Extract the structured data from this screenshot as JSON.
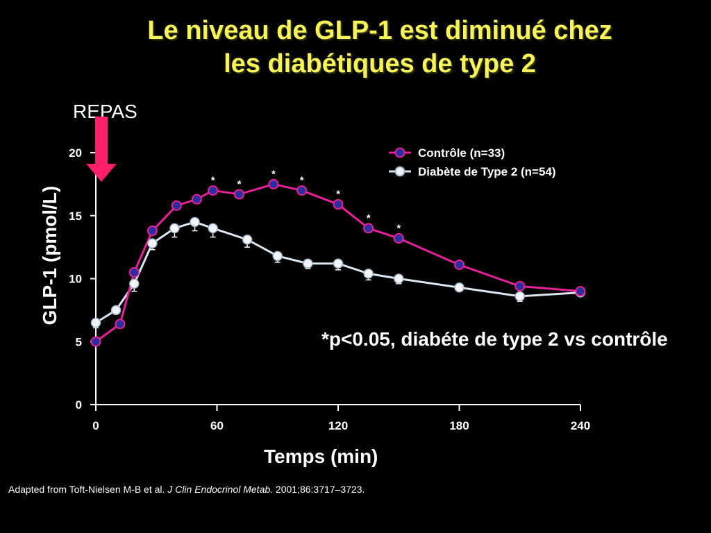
{
  "slide": {
    "title_line1": "Le niveau de GLP-1 est diminué chez",
    "title_line2": "les diabétiques de type 2",
    "meal_label": "REPAS",
    "significance_note": "*p<0.05, diabéte de type 2  vs contrôle",
    "citation_prefix": "Adapted from Toft-Nielsen M-B et al. ",
    "citation_journal": "J Clin Endocrinol Metab.",
    "citation_suffix": " 2001;86:3717–3723.",
    "colors": {
      "title": "#f6f25a",
      "control_line": "#e8209a",
      "control_marker": "#2b2f9e",
      "diabetes_line": "#dbe7f2",
      "meal_arrow": "#ff1f6b"
    }
  },
  "chart_data": {
    "type": "line",
    "xlabel": "Temps (min)",
    "ylabel": "GLP-1 (pmol/L)",
    "xlim": [
      0,
      240
    ],
    "ylim": [
      0,
      20
    ],
    "xticks": [
      0,
      60,
      120,
      180,
      240
    ],
    "yticks": [
      0,
      5,
      10,
      15,
      20
    ],
    "grid": false,
    "legend_position": "top-right",
    "series": [
      {
        "name": "Contrôle (n=33)",
        "x": [
          0,
          12,
          19,
          28,
          40,
          50,
          58,
          71,
          88,
          102,
          120,
          135,
          150,
          180,
          210,
          240
        ],
        "y": [
          5.0,
          6.4,
          10.5,
          13.8,
          15.8,
          16.3,
          17.0,
          16.7,
          17.5,
          17.0,
          15.9,
          14.0,
          13.2,
          11.1,
          9.4,
          9.0
        ],
        "significant": [
          false,
          false,
          false,
          false,
          false,
          false,
          true,
          true,
          true,
          true,
          true,
          true,
          true,
          false,
          false,
          false
        ]
      },
      {
        "name": "Diabète de Type 2 (n=54)",
        "x": [
          0,
          10,
          19,
          28,
          39,
          49,
          58,
          75,
          90,
          105,
          120,
          135,
          150,
          180,
          210,
          240
        ],
        "y": [
          6.5,
          7.5,
          9.6,
          12.8,
          14.0,
          14.5,
          14.0,
          13.1,
          11.8,
          11.2,
          11.2,
          10.4,
          10.0,
          9.3,
          8.6,
          8.9
        ],
        "error": [
          0.4,
          0.3,
          0.6,
          0.5,
          0.7,
          0.7,
          0.7,
          0.6,
          0.5,
          0.4,
          0.5,
          0.5,
          0.4,
          0.3,
          0.4,
          0.3
        ]
      }
    ]
  }
}
